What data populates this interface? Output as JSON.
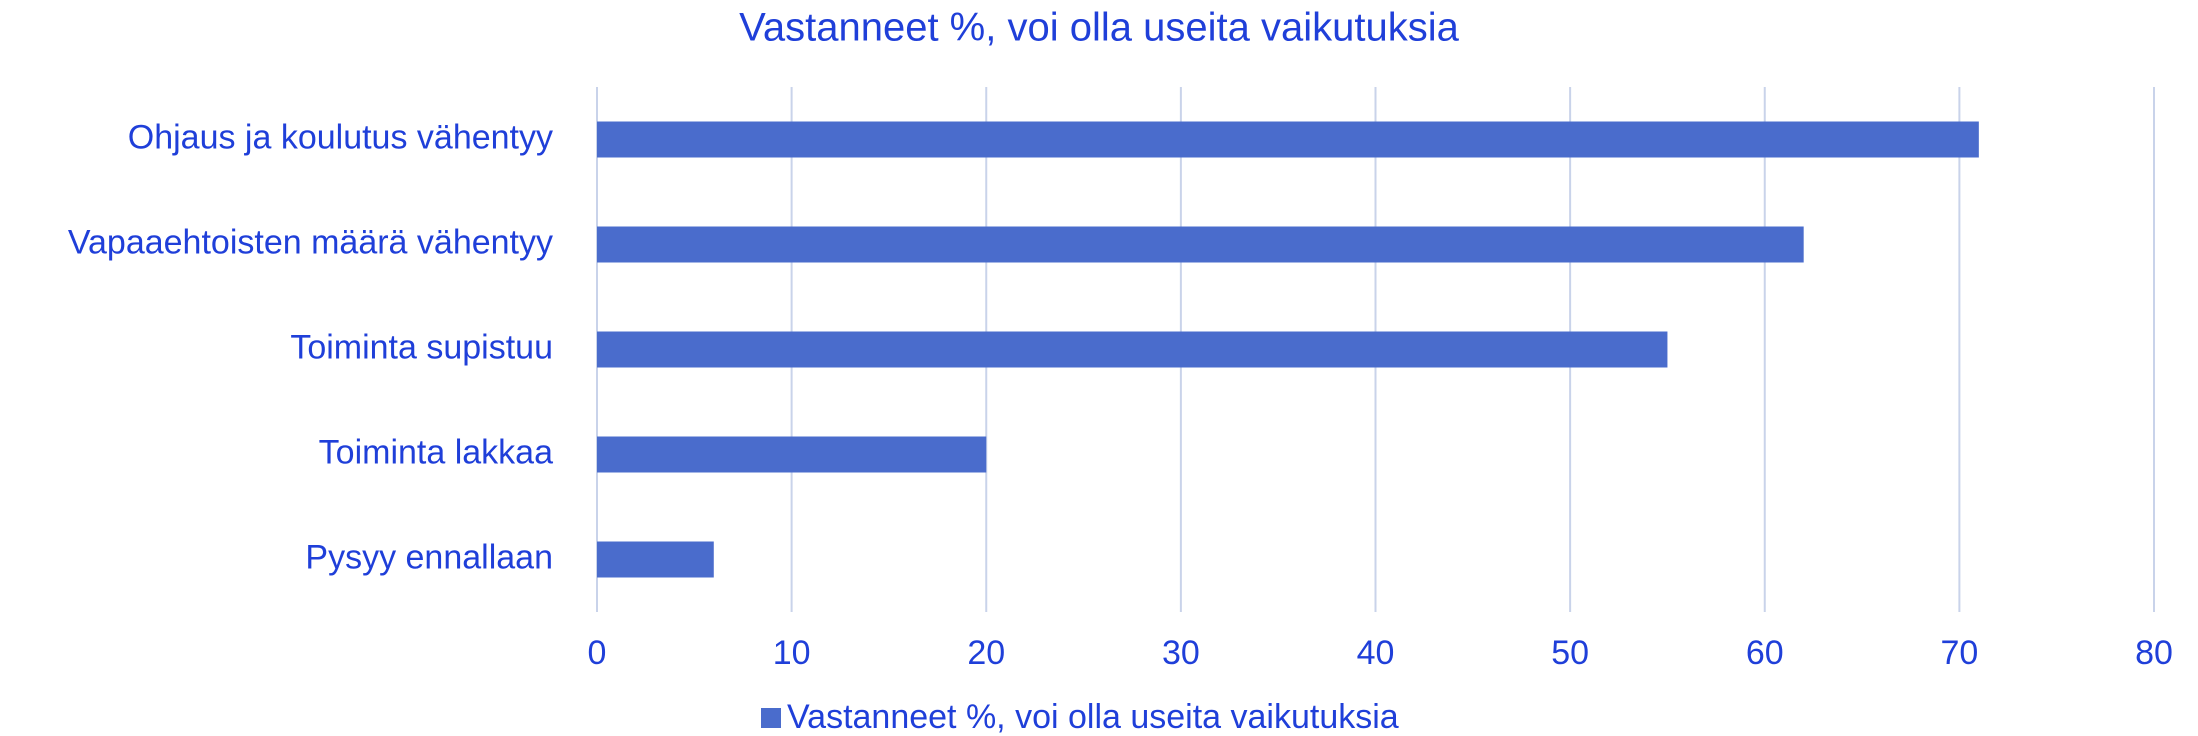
{
  "chart_data": {
    "type": "bar",
    "orientation": "horizontal",
    "title": "Vastanneet %, voi olla useita vaikutuksia",
    "categories": [
      "Ohjaus ja koulutus vähentyy",
      "Vapaaehtoisten määrä vähentyy",
      "Toiminta supistuu",
      "Toiminta lakkaa",
      "Pysyy ennallaan"
    ],
    "series": [
      {
        "name": "Vastanneet %, voi olla useita vaikutuksia",
        "color": "#4a6ccc",
        "values": [
          71,
          62,
          55,
          20,
          6
        ]
      }
    ],
    "xlim": [
      0,
      80
    ],
    "xticks": [
      0,
      10,
      20,
      30,
      40,
      50,
      60,
      70,
      80
    ],
    "grid": true,
    "legend": "bottom"
  }
}
